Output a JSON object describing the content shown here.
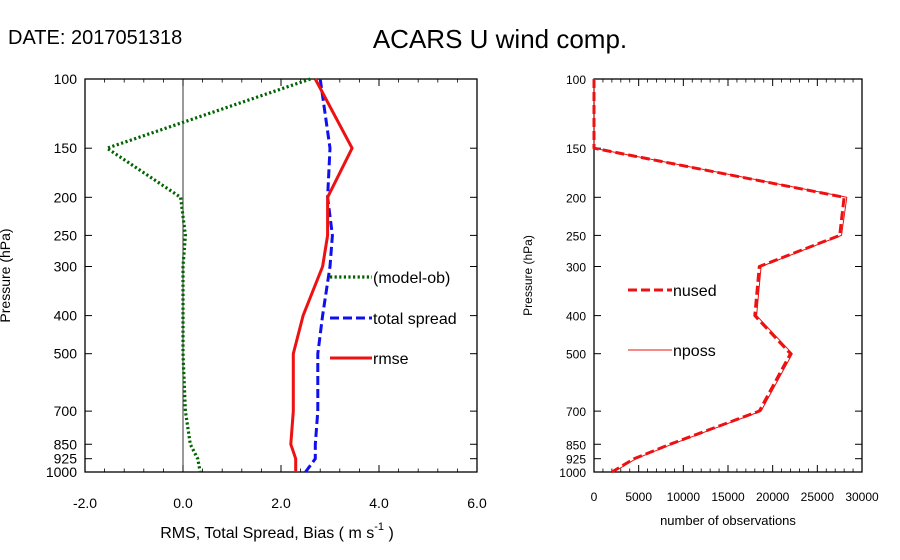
{
  "header": {
    "date_label": "DATE: 2017051318",
    "title": "ACARS U wind comp."
  },
  "chart_data": [
    {
      "type": "line",
      "title": "ACARS U wind comp.",
      "xlabel": "RMS, Total Spread, Bias ( m s",
      "xlabel_sup": "-1",
      "xlabel_end": " )",
      "ylabel": "Pressure (hPa)",
      "xlim": [
        -2.0,
        6.0
      ],
      "xticks": [
        -2.0,
        0.0,
        2.0,
        4.0,
        6.0
      ],
      "xtick_labels": [
        "-2.0",
        "0.0",
        "2.0",
        "4.0",
        "6.0"
      ],
      "yscale": "log",
      "ylim": [
        1000,
        100
      ],
      "y": [
        100,
        150,
        200,
        250,
        300,
        400,
        500,
        700,
        850,
        925,
        1000
      ],
      "ytick_labels": [
        "100",
        "150",
        "200",
        "250",
        "300",
        "400",
        "500",
        "700",
        "850",
        "925",
        "1000"
      ],
      "series": [
        {
          "name": "(model-ob)",
          "color": "#006400",
          "dash": "dotted",
          "values": [
            2.6,
            -1.55,
            -0.05,
            0.05,
            0.0,
            0.0,
            0.0,
            0.05,
            0.15,
            0.3,
            0.35
          ]
        },
        {
          "name": "total spread",
          "color": "#1010ee",
          "dash": "dashed",
          "values": [
            2.8,
            3.0,
            2.95,
            3.05,
            3.0,
            2.85,
            2.75,
            2.75,
            2.7,
            2.7,
            2.5
          ]
        },
        {
          "name": "rmse",
          "color": "#ee1111",
          "dash": "solid",
          "values": [
            2.7,
            3.45,
            2.95,
            2.95,
            2.85,
            2.45,
            2.25,
            2.25,
            2.2,
            2.3,
            2.3
          ]
        }
      ]
    },
    {
      "type": "line",
      "xlabel": "number of observations",
      "ylabel": "Pressure (hPa)",
      "xlim": [
        0,
        30000
      ],
      "xticks": [
        0,
        5000,
        10000,
        15000,
        20000,
        25000,
        30000
      ],
      "xtick_labels": [
        "0",
        "5000",
        "10000",
        "15000",
        "20000",
        "25000",
        "30000"
      ],
      "yscale": "log",
      "ylim": [
        1000,
        100
      ],
      "y": [
        100,
        150,
        200,
        250,
        300,
        400,
        500,
        700,
        850,
        925,
        1000
      ],
      "ytick_labels": [
        "100",
        "150",
        "200",
        "250",
        "300",
        "400",
        "500",
        "700",
        "850",
        "925",
        "1000"
      ],
      "series": [
        {
          "name": "nused",
          "color": "#ee1111",
          "dash": "dashed",
          "values": [
            0,
            0,
            28000,
            27500,
            18500,
            18000,
            22000,
            18500,
            8500,
            4500,
            2000
          ]
        },
        {
          "name": "nposs",
          "color": "#ee1111",
          "dash": "thin",
          "values": [
            0,
            0,
            28300,
            27700,
            18700,
            18200,
            22200,
            18700,
            8700,
            4700,
            2200
          ]
        }
      ]
    }
  ]
}
